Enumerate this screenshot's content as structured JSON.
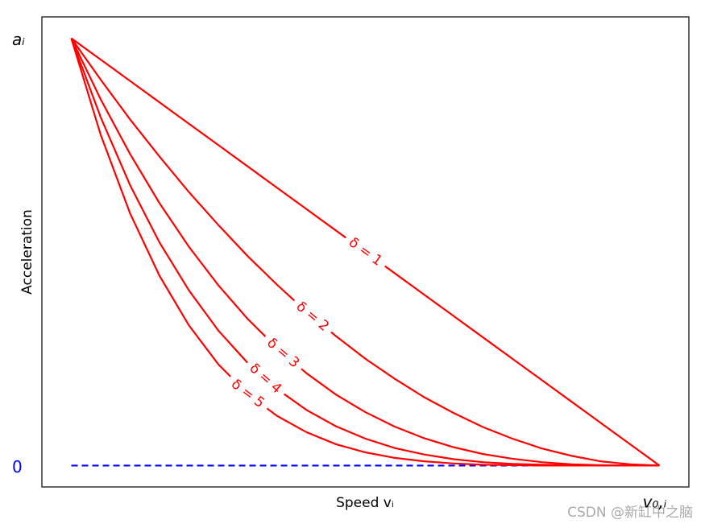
{
  "chart_data": {
    "type": "line",
    "x_label": "Speed vᵢ",
    "y_label": "Acceleration",
    "x": [
      0,
      0.05,
      0.1,
      0.15,
      0.2,
      0.25,
      0.3,
      0.35,
      0.4,
      0.45,
      0.5,
      0.55,
      0.6,
      0.65,
      0.7,
      0.75,
      0.8,
      0.85,
      0.9,
      0.95,
      1
    ],
    "series": [
      {
        "name": "δ = 1",
        "color": "#ff0000",
        "values": [
          1,
          0.95,
          0.9,
          0.85,
          0.8,
          0.75,
          0.7,
          0.65,
          0.6,
          0.55,
          0.5,
          0.45,
          0.4,
          0.35,
          0.3,
          0.25,
          0.2,
          0.15,
          0.1,
          0.05,
          0
        ]
      },
      {
        "name": "δ = 2",
        "color": "#ff0000",
        "values": [
          1,
          0.903,
          0.81,
          0.723,
          0.64,
          0.563,
          0.49,
          0.423,
          0.36,
          0.303,
          0.25,
          0.203,
          0.16,
          0.123,
          0.09,
          0.063,
          0.04,
          0.023,
          0.01,
          0.003,
          0
        ]
      },
      {
        "name": "δ = 3",
        "color": "#ff0000",
        "values": [
          1,
          0.857,
          0.729,
          0.614,
          0.512,
          0.422,
          0.343,
          0.275,
          0.216,
          0.166,
          0.125,
          0.091,
          0.064,
          0.043,
          0.027,
          0.016,
          0.008,
          0.003,
          0.001,
          0,
          0
        ]
      },
      {
        "name": "δ = 4",
        "color": "#ff0000",
        "values": [
          1,
          0.815,
          0.656,
          0.522,
          0.41,
          0.316,
          0.24,
          0.179,
          0.13,
          0.092,
          0.063,
          0.041,
          0.026,
          0.015,
          0.008,
          0.004,
          0.002,
          0.001,
          0,
          0,
          0
        ]
      },
      {
        "name": "δ = 5",
        "color": "#ff0000",
        "values": [
          1,
          0.774,
          0.59,
          0.444,
          0.328,
          0.237,
          0.168,
          0.116,
          0.078,
          0.05,
          0.031,
          0.018,
          0.01,
          0.005,
          0.002,
          0.001,
          0,
          0,
          0,
          0,
          0
        ]
      }
    ],
    "xlim": [
      -0.05,
      1.05
    ],
    "ylim": [
      -0.05,
      1.05
    ],
    "xticks": [
      {
        "value": 1,
        "label": "v₀,ᵢ"
      }
    ],
    "yticks": [
      {
        "value": 0,
        "label": "0"
      },
      {
        "value": 1,
        "label": "aᵢ"
      }
    ],
    "baseline_color": "#0000ff",
    "baseline_style": "dashed",
    "watermark": "CSDN @新缸中之脑"
  }
}
